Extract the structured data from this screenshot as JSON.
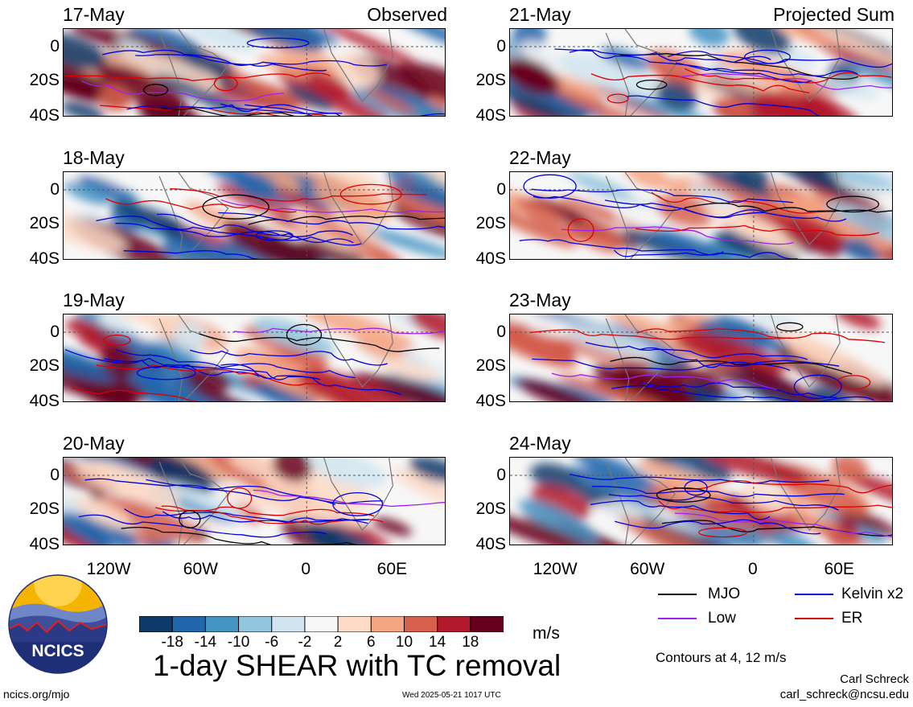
{
  "panels": [
    {
      "date": "17-May",
      "corner": "Observed",
      "column": "left",
      "row": 0
    },
    {
      "date": "18-May",
      "corner": "",
      "column": "left",
      "row": 1
    },
    {
      "date": "19-May",
      "corner": "",
      "column": "left",
      "row": 2
    },
    {
      "date": "20-May",
      "corner": "",
      "column": "left",
      "row": 3
    },
    {
      "date": "21-May",
      "corner": "Projected Sum",
      "column": "right",
      "row": 0
    },
    {
      "date": "22-May",
      "corner": "",
      "column": "right",
      "row": 1
    },
    {
      "date": "23-May",
      "corner": "",
      "column": "right",
      "row": 2
    },
    {
      "date": "24-May",
      "corner": "",
      "column": "right",
      "row": 3
    }
  ],
  "lat_labels": [
    "0",
    "20S",
    "40S"
  ],
  "lon_labels": [
    "120W",
    "60W",
    "0",
    "60E"
  ],
  "colorbar": {
    "colors": [
      "#0d3a6b",
      "#2166ac",
      "#4393c3",
      "#92c5de",
      "#d1e5f0",
      "#f7f7f7",
      "#fddbc7",
      "#f4a582",
      "#d6604d",
      "#b2182b",
      "#67001f"
    ],
    "labels": [
      "-18",
      "-14",
      "-10",
      "-6",
      "-2",
      "2",
      "6",
      "10",
      "14",
      "18"
    ],
    "units": "m/s"
  },
  "legend": {
    "items": [
      {
        "label": "MJO",
        "color": "#000000"
      },
      {
        "label": "Kelvin x2",
        "color": "#0000dd"
      },
      {
        "label": "Low",
        "color": "#a020f0"
      },
      {
        "label": "ER",
        "color": "#dd0000"
      }
    ],
    "contours_note": "Contours at 4, 12 m/s"
  },
  "title": "1-day SHEAR with TC removal",
  "logo_text": "NCICS",
  "footer": {
    "url": "ncics.org/mjo",
    "timestamp": "Wed 2025-05-21 1017 UTC",
    "author": "Carl Schreck",
    "email": "carl_schreck@ncsu.edu"
  }
}
